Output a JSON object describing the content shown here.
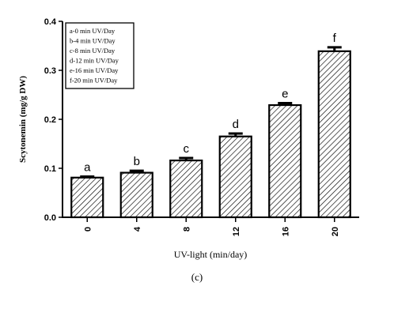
{
  "chart_data": {
    "type": "bar",
    "categories": [
      "0",
      "4",
      "8",
      "12",
      "16",
      "20"
    ],
    "values": [
      0.081,
      0.091,
      0.116,
      0.165,
      0.229,
      0.339
    ],
    "errors": [
      0.002,
      0.004,
      0.005,
      0.006,
      0.004,
      0.008
    ],
    "letters": [
      "a",
      "b",
      "c",
      "d",
      "e",
      "f"
    ],
    "ylabel": "Scytonemin (mg/g DW)",
    "xlabel": "UV-light (min/day)",
    "ylim": [
      0,
      0.4
    ],
    "yticks": [
      "0.0",
      "0.1",
      "0.2",
      "0.3",
      "0.4"
    ],
    "legend": [
      "a-0 min UV/Day",
      "b-4 min UV/Day",
      "c-8 min UV/Day",
      "d-12 min UV/Day",
      "e-16 min UV/Day",
      "f-20 min UV/Day"
    ],
    "legend_position": "top-left",
    "fill": "diagonal-hatch",
    "grid": false
  },
  "caption": "(c)"
}
